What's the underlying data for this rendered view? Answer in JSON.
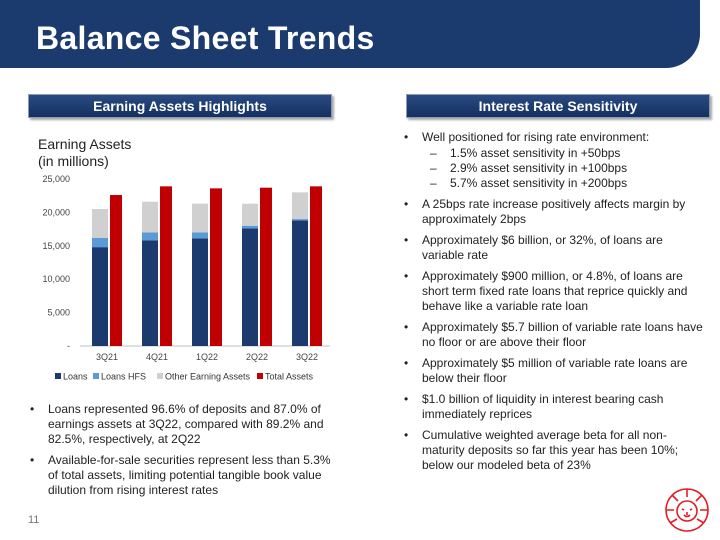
{
  "title": "Balance Sheet Trends",
  "left_header": "Earning Assets Highlights",
  "right_header": "Interest Rate Sensitivity",
  "page_number": "11",
  "colors": {
    "navy": "#1b3a6e",
    "loans": "#1b3a6e",
    "loans_hfs": "#5b9bd5",
    "other": "#d0d0d0",
    "total": "#c00000",
    "logo": "#e31b23"
  },
  "chart_data": {
    "type": "bar",
    "title_lines": [
      "Earning Assets",
      "(in millions)"
    ],
    "categories": [
      "3Q21",
      "4Q21",
      "1Q22",
      "2Q22",
      "3Q22"
    ],
    "stacked_series": [
      {
        "name": "Loans",
        "values": [
          14800,
          15800,
          16100,
          17600,
          18800
        ]
      },
      {
        "name": "Loans HFS",
        "values": [
          1400,
          1200,
          900,
          400,
          200
        ]
      },
      {
        "name": "Other Earning Assets",
        "values": [
          4300,
          4600,
          4300,
          3300,
          4000
        ]
      }
    ],
    "total_series": {
      "name": "Total Assets",
      "values": [
        22600,
        23900,
        23600,
        23700,
        23900
      ]
    },
    "ylim": [
      0,
      25000
    ],
    "y_ticks": [
      "25,000",
      "20,000",
      "15,000",
      "10,000",
      "5,000",
      "-"
    ],
    "legend": [
      "Loans",
      "Loans HFS",
      "Other Earning Assets",
      "Total Assets"
    ],
    "legend_position": "bottom",
    "grid": false
  },
  "left_bullets": [
    "Loans represented 96.6% of deposits and 87.0% of earnings assets at 3Q22, compared with 89.2% and 82.5%, respectively, at 2Q22",
    "Available-for-sale securities represent less than 5.3% of total assets, limiting potential tangible book value dilution from rising interest rates"
  ],
  "right_bullets": [
    {
      "text": "Well positioned for rising rate environment:",
      "sub": [
        "1.5% asset sensitivity in +50bps",
        "2.9% asset sensitivity in +100bps",
        "5.7% asset sensitivity in +200bps"
      ]
    },
    {
      "text": "A 25bps rate increase positively affects margin by approximately 2bps"
    },
    {
      "text": "Approximately $6 billion, or 32%, of loans are variable rate"
    },
    {
      "text": "Approximately $900 million, or 4.8%, of loans are short term fixed rate loans that reprice quickly and behave like a variable rate loan"
    },
    {
      "text": "Approximately $5.7 billion of variable rate loans have no floor or are above their floor"
    },
    {
      "text": "Approximately $5 million of variable rate loans are below their floor"
    },
    {
      "text": "$1.0 billion of liquidity in interest bearing cash immediately reprices"
    },
    {
      "text": "Cumulative weighted average beta for all non-maturity deposits so far this year has been 10%; below our modeled beta of 23%"
    }
  ]
}
